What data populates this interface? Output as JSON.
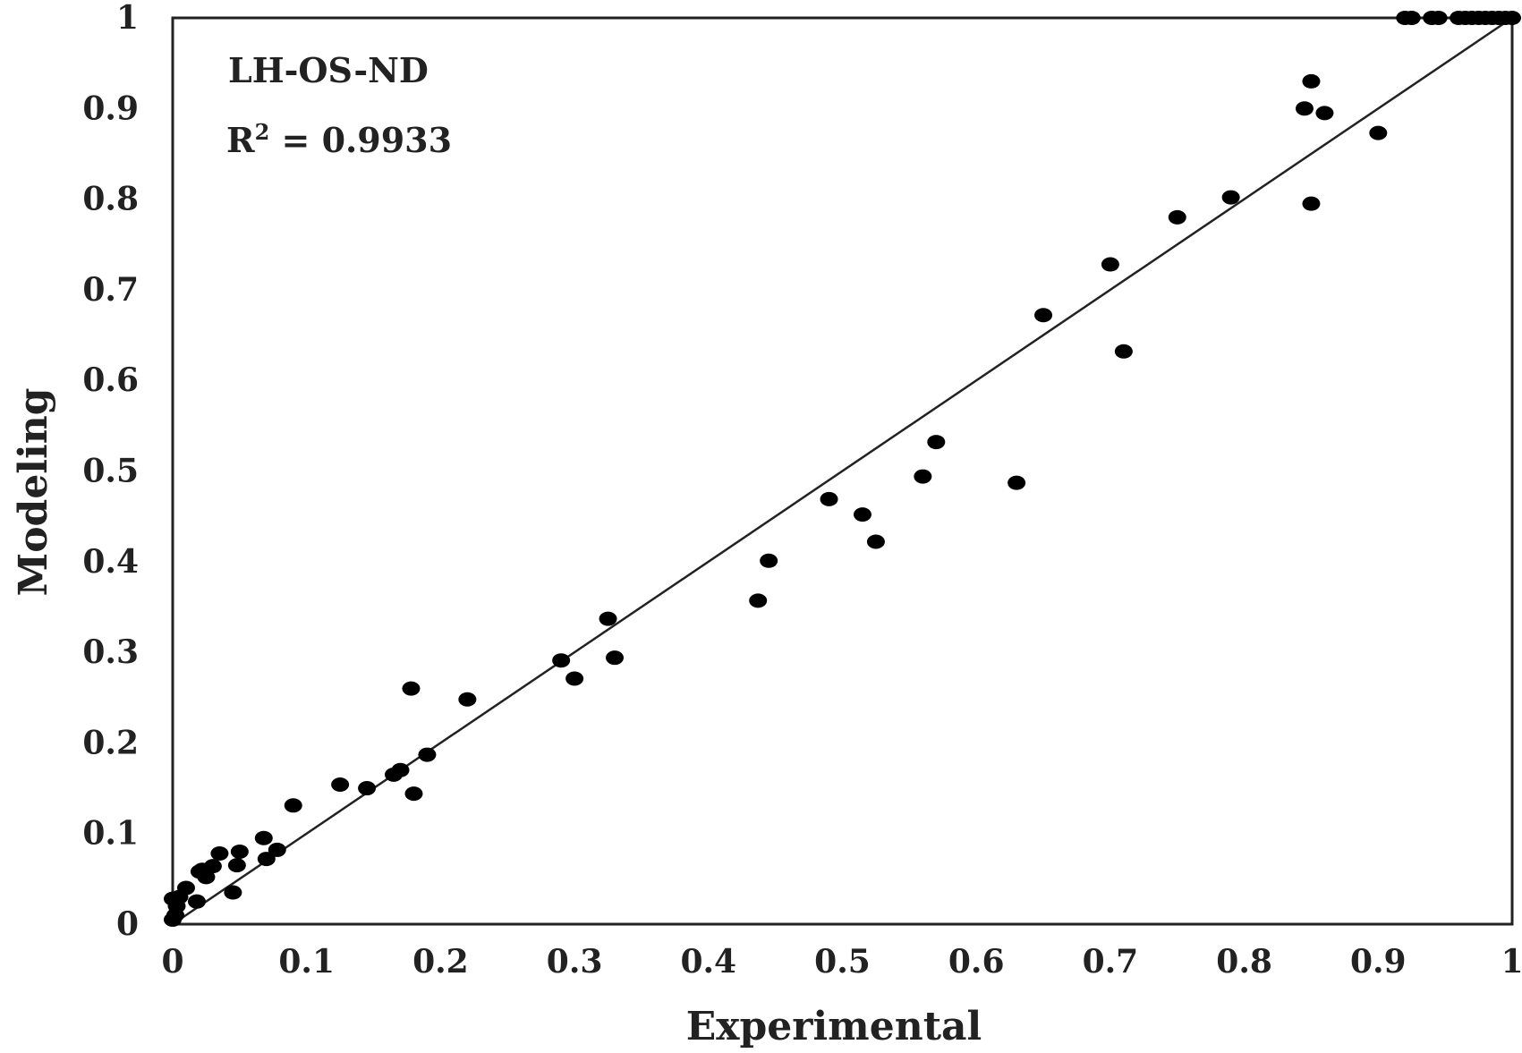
{
  "chart_data": {
    "type": "scatter",
    "title": "",
    "xlabel": "Experimental",
    "ylabel": "Modeling",
    "xlim": [
      0,
      1
    ],
    "ylim": [
      0,
      1
    ],
    "xticks": [
      "0",
      "0.1",
      "0.2",
      "0.3",
      "0.4",
      "0.5",
      "0.6",
      "0.7",
      "0.8",
      "0.9",
      "1"
    ],
    "yticks": [
      "0",
      "0.1",
      "0.2",
      "0.3",
      "0.4",
      "0.5",
      "0.6",
      "0.7",
      "0.8",
      "0.9",
      "1"
    ],
    "grid": false,
    "legend": "none",
    "annotations": {
      "label": "LH-OS-ND",
      "r2_prefix": "R",
      "r2_sup": "2",
      "r2_value": " = 0.9933"
    },
    "fit_line": {
      "x": [
        0,
        1
      ],
      "y": [
        0,
        1
      ]
    },
    "marker_color": "#000000",
    "series": [
      {
        "x": [
          0.92,
          0.925,
          0.94,
          0.945,
          0.96,
          0.965,
          0.97,
          0.975,
          0.98,
          0.985,
          0.99,
          0.995,
          1.0,
          0.85,
          0.845,
          0.86,
          0.9,
          0.85,
          0.79,
          0.75,
          0.7,
          0.71,
          0.65,
          0.63,
          0.57,
          0.56,
          0.525,
          0.515,
          0.49,
          0.445,
          0.437,
          0.325,
          0.33,
          0.29,
          0.3,
          0.22,
          0.178,
          0.18,
          0.19,
          0.17,
          0.165,
          0.145,
          0.125,
          0.09,
          0.078,
          0.07,
          0.068,
          0.05,
          0.048,
          0.045,
          0.035,
          0.03,
          0.025,
          0.022,
          0.02,
          0.018,
          0.01,
          0.005,
          0.003,
          0.002,
          0.0,
          0.0
        ],
        "y": [
          1.0,
          1.0,
          1.0,
          1.0,
          1.0,
          1.0,
          1.0,
          1.0,
          1.0,
          1.0,
          1.0,
          1.0,
          1.0,
          0.93,
          0.9,
          0.895,
          0.873,
          0.795,
          0.802,
          0.78,
          0.728,
          0.632,
          0.672,
          0.487,
          0.532,
          0.494,
          0.422,
          0.452,
          0.469,
          0.401,
          0.357,
          0.337,
          0.294,
          0.291,
          0.271,
          0.248,
          0.26,
          0.144,
          0.187,
          0.17,
          0.165,
          0.15,
          0.154,
          0.131,
          0.082,
          0.072,
          0.095,
          0.08,
          0.065,
          0.035,
          0.078,
          0.064,
          0.052,
          0.06,
          0.058,
          0.025,
          0.04,
          0.03,
          0.02,
          0.01,
          0.028,
          0.005
        ]
      }
    ]
  }
}
